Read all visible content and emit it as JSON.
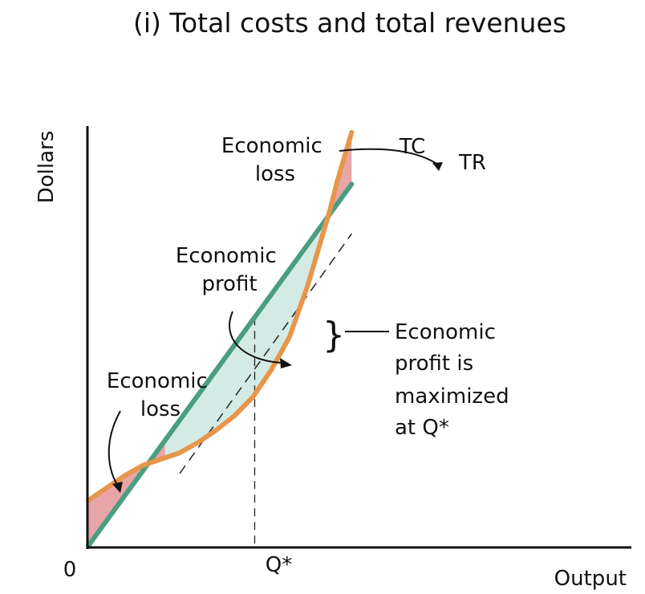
{
  "chart_data": {
    "type": "line",
    "title": "(i) Total costs and total revenues",
    "xlabel": "Output",
    "ylabel": "Dollars",
    "origin_label": "0",
    "xlim": [
      0,
      100
    ],
    "ylim": [
      0,
      100
    ],
    "series": [
      {
        "name": "TC",
        "color": "#e8964a",
        "x": [
          0,
          5,
          10,
          15,
          20,
          25,
          30,
          35,
          40,
          45,
          50,
          55,
          60,
          63,
          66,
          68,
          70,
          72
        ],
        "y": [
          11,
          14,
          17,
          19.5,
          21,
          22.5,
          25,
          28,
          31.5,
          36,
          42.5,
          50.5,
          63,
          72,
          81,
          88,
          94,
          100
        ]
      },
      {
        "name": "TR",
        "color": "#4a9e80",
        "x": [
          0,
          72
        ],
        "y": [
          0,
          87.5
        ]
      }
    ],
    "tangent_line": {
      "x": [
        25,
        72
      ],
      "y": [
        17.5,
        75.5
      ]
    },
    "q_star": {
      "label": "Q*",
      "x": 45.5
    },
    "shaded_regions": [
      {
        "label": "Economic loss",
        "x_range": [
          0,
          21
        ],
        "color": "#e8a5a8"
      },
      {
        "label": "Economic profit",
        "x_range": [
          21,
          64.5
        ],
        "color": "#d4ebe5"
      },
      {
        "label": "Economic loss",
        "x_range": [
          64.5,
          72
        ],
        "color": "#e8a5a8"
      }
    ],
    "annotations": [
      {
        "id": "loss_low",
        "lines": [
          "Economic",
          "loss"
        ]
      },
      {
        "id": "profit",
        "lines": [
          "Economic",
          "profit"
        ]
      },
      {
        "id": "loss_high",
        "lines": [
          "Economic",
          "loss"
        ]
      },
      {
        "id": "maximized",
        "lines": [
          "Economic",
          "profit is",
          "maximized",
          "at Q*"
        ]
      }
    ]
  }
}
